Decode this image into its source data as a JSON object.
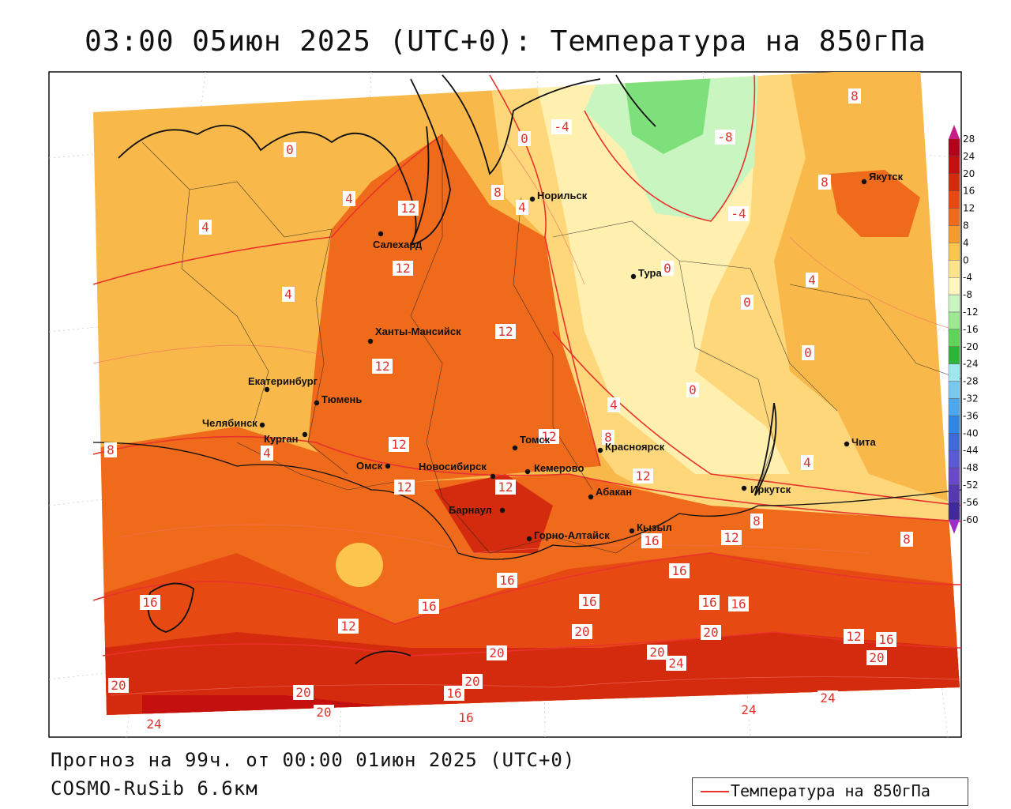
{
  "title": "03:00 05июн 2025 (UTC+0): Температура на 850гПа",
  "footer": {
    "forecast": "Прогноз на 99ч. от 00:00 01июн 2025 (UTC+0)",
    "model": "COSMO-RuSib 6.6км"
  },
  "legend": {
    "label": "Температура на 850гПа",
    "color": "#e8322c"
  },
  "colorbar": {
    "levels": [
      "28",
      "24",
      "20",
      "16",
      "12",
      "8",
      "4",
      "0",
      "-4",
      "-8",
      "-12",
      "-16",
      "-20",
      "-24",
      "-28",
      "-32",
      "-36",
      "-40",
      "-44",
      "-48",
      "-52",
      "-56",
      "-60"
    ],
    "colors": [
      "#b3001b",
      "#c4100e",
      "#d42a0d",
      "#e64a12",
      "#ef6a1a",
      "#f79a2c",
      "#fcc64e",
      "#fde48a",
      "#fff6c0",
      "#c8f5c0",
      "#9de890",
      "#5fd35a",
      "#2fb43a",
      "#9fe6ee",
      "#7bc8ee",
      "#4ea6ec",
      "#2f86e4",
      "#3d6ad8",
      "#5a5ad4",
      "#6a48c8",
      "#5638b0",
      "#3f2a98",
      "#2a1a7a"
    ],
    "top_arrow_color": "#c81c88",
    "bottom_arrow_color": "#9a30c8"
  },
  "cities": [
    {
      "name": "Якутск"
    },
    {
      "name": "Норильск"
    },
    {
      "name": "Салехард"
    },
    {
      "name": "Тура"
    },
    {
      "name": "Ханты-Мансийск"
    },
    {
      "name": "Екатеринбург"
    },
    {
      "name": "Тюмень"
    },
    {
      "name": "Челябинск"
    },
    {
      "name": "Курган"
    },
    {
      "name": "Томск"
    },
    {
      "name": "Красноярск"
    },
    {
      "name": "Омск"
    },
    {
      "name": "Новосибирск"
    },
    {
      "name": "Кемерово"
    },
    {
      "name": "Абакан"
    },
    {
      "name": "Барнаул"
    },
    {
      "name": "Горно-Алтайск"
    },
    {
      "name": "Кызыл"
    },
    {
      "name": "Иркутск"
    },
    {
      "name": "Чита"
    }
  ],
  "isoline_labels": [
    "0",
    "-4",
    "0",
    "-8",
    "8",
    "4",
    "12",
    "8",
    "-4",
    "4",
    "4",
    "12",
    "0",
    "8",
    "4",
    "12",
    "4",
    "0",
    "0",
    "12",
    "0",
    "4",
    "12",
    "8",
    "12",
    "12",
    "8",
    "4",
    "12",
    "12",
    "8",
    "12",
    "16",
    "16",
    "8",
    "16",
    "16",
    "16",
    "16",
    "12",
    "20",
    "20",
    "20",
    "24",
    "12",
    "16",
    "20",
    "16",
    "20",
    "20",
    "16",
    "20",
    "24",
    "20",
    "24",
    "24",
    "20",
    "16",
    "4",
    "16"
  ]
}
